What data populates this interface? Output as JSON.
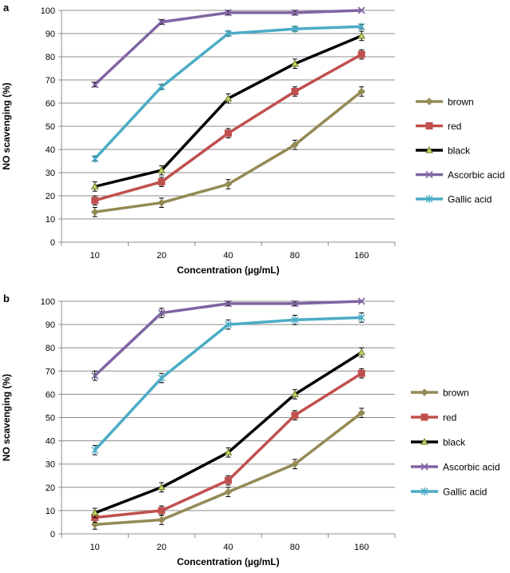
{
  "chart_data": [
    {
      "type": "line",
      "panel_label": "a",
      "categories": [
        "10",
        "20",
        "40",
        "80",
        "160"
      ],
      "xlabel": "Concentration (µg/mL)",
      "ylabel": "NO scavenging (%)",
      "ylim": [
        0,
        100
      ],
      "yticks": [
        "0",
        "10",
        "20",
        "30",
        "40",
        "50",
        "60",
        "70",
        "80",
        "90",
        "100"
      ],
      "grid": true,
      "legend_position": "right",
      "series": [
        {
          "name": "brown",
          "color": "#948A54",
          "marker": "diamond",
          "values": [
            13,
            17,
            25,
            42,
            65
          ],
          "errors": [
            2,
            2,
            2,
            2,
            2
          ]
        },
        {
          "name": "red",
          "color": "#C0504D",
          "marker": "square",
          "values": [
            18,
            26,
            47,
            65,
            81
          ],
          "errors": [
            2,
            2,
            2,
            2,
            2
          ]
        },
        {
          "name": "black",
          "color": "#000000",
          "marker": "triangle",
          "values": [
            24,
            31,
            62,
            77,
            89
          ],
          "errors": [
            2,
            2,
            2,
            2,
            2
          ]
        },
        {
          "name": "Ascorbic acid",
          "color": "#8064A2",
          "marker": "x",
          "values": [
            68,
            95,
            99,
            99,
            100
          ],
          "errors": [
            1,
            1,
            1,
            1,
            0
          ]
        },
        {
          "name": "Gallic acid",
          "color": "#4BACC6",
          "marker": "star",
          "values": [
            36,
            67,
            90,
            92,
            93
          ],
          "errors": [
            1,
            1,
            1,
            1,
            1
          ]
        }
      ]
    },
    {
      "type": "line",
      "panel_label": "b",
      "categories": [
        "10",
        "20",
        "40",
        "80",
        "160"
      ],
      "xlabel": "Concentration (µg/mL)",
      "ylabel": "NO scavenging (%)",
      "ylim": [
        0,
        100
      ],
      "yticks": [
        "0",
        "10",
        "20",
        "30",
        "40",
        "50",
        "60",
        "70",
        "80",
        "90",
        "100"
      ],
      "grid": true,
      "legend_position": "right",
      "series": [
        {
          "name": "brown",
          "color": "#948A54",
          "marker": "diamond",
          "values": [
            4,
            6,
            18,
            30,
            52
          ],
          "errors": [
            2,
            2,
            2,
            2,
            2
          ]
        },
        {
          "name": "red",
          "color": "#C0504D",
          "marker": "square",
          "values": [
            7,
            10,
            23,
            51,
            69
          ],
          "errors": [
            2,
            2,
            2,
            2,
            2
          ]
        },
        {
          "name": "black",
          "color": "#000000",
          "marker": "triangle",
          "values": [
            9,
            20,
            35,
            60,
            78
          ],
          "errors": [
            2,
            2,
            2,
            2,
            2
          ]
        },
        {
          "name": "Ascorbic acid",
          "color": "#8064A2",
          "marker": "x",
          "values": [
            68,
            95,
            99,
            99,
            100
          ],
          "errors": [
            2,
            2,
            1,
            1,
            0
          ]
        },
        {
          "name": "Gallic acid",
          "color": "#4BACC6",
          "marker": "star",
          "values": [
            36,
            67,
            90,
            92,
            93
          ],
          "errors": [
            2,
            2,
            2,
            2,
            2
          ]
        }
      ]
    }
  ]
}
